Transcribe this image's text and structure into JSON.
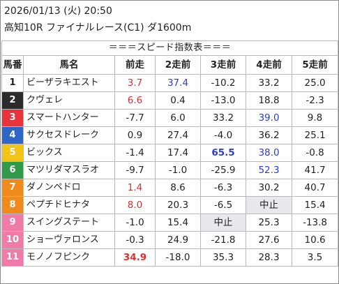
{
  "header": {
    "datetime": "2026/01/13 (火) 20:50",
    "race": "高知10R ファイナルレース(C1) ダ1600m"
  },
  "table": {
    "caption": "＝＝＝スピード指数表＝＝＝",
    "columns": [
      "馬番",
      "馬名",
      "前走",
      "2走前",
      "3走前",
      "4走前",
      "5走前"
    ],
    "rows": [
      {
        "no": "1",
        "name": "ビーザラキエスト",
        "v": [
          "3.7",
          "37.4",
          "-10.2",
          "33.2",
          "25.0"
        ],
        "st": [
          "red",
          "blue",
          "",
          "",
          ""
        ],
        "bg": "#ffffff",
        "fg": "#222222"
      },
      {
        "no": "2",
        "name": "クヴェレ",
        "v": [
          "6.6",
          "0.4",
          "-13.0",
          "18.8",
          "-2.3"
        ],
        "st": [
          "red",
          "",
          "",
          "",
          ""
        ],
        "bg": "#2b2b2b",
        "fg": "#ffffff"
      },
      {
        "no": "3",
        "name": "スマートハンター",
        "v": [
          "-7.7",
          "6.0",
          "33.2",
          "39.0",
          "9.8"
        ],
        "st": [
          "",
          "",
          "",
          "blue",
          ""
        ],
        "bg": "#e8333a",
        "fg": "#ffffff"
      },
      {
        "no": "4",
        "name": "サクセスドレーク",
        "v": [
          "0.9",
          "27.4",
          "-4.0",
          "36.2",
          "25.1"
        ],
        "st": [
          "",
          "",
          "",
          "",
          ""
        ],
        "bg": "#2e66c8",
        "fg": "#ffffff"
      },
      {
        "no": "5",
        "name": "ビックス",
        "v": [
          "-1.4",
          "17.4",
          "65.5",
          "38.0",
          "-0.8"
        ],
        "st": [
          "",
          "",
          "bluebold",
          "blue",
          ""
        ],
        "bg": "#f2c418",
        "fg": "#ffffff"
      },
      {
        "no": "6",
        "name": "マツリダマスラオ",
        "v": [
          "-9.7",
          "-1.0",
          "-25.9",
          "52.3",
          "41.7"
        ],
        "st": [
          "",
          "",
          "",
          "blue",
          ""
        ],
        "bg": "#2f9a48",
        "fg": "#ffffff"
      },
      {
        "no": "7",
        "name": "ダノンペドロ",
        "v": [
          "1.4",
          "8.6",
          "-6.3",
          "30.2",
          "40.7"
        ],
        "st": [
          "red",
          "",
          "",
          "",
          ""
        ],
        "bg": "#f08a1c",
        "fg": "#ffffff"
      },
      {
        "no": "8",
        "name": "ペプチドヒナタ",
        "v": [
          "8.0",
          "20.3",
          "-6.5",
          "中止",
          "15.4"
        ],
        "st": [
          "red",
          "",
          "",
          "na",
          ""
        ],
        "bg": "#f08a1c",
        "fg": "#ffffff"
      },
      {
        "no": "9",
        "name": "スイングステート",
        "v": [
          "-1.0",
          "15.4",
          "中止",
          "25.3",
          "-13.8"
        ],
        "st": [
          "",
          "",
          "na",
          "",
          ""
        ],
        "bg": "#f07ba8",
        "fg": "#ffffff"
      },
      {
        "no": "10",
        "name": "ショーヴァロンス",
        "v": [
          "-0.3",
          "24.9",
          "-21.8",
          "27.6",
          "10.6"
        ],
        "st": [
          "",
          "",
          "",
          "",
          ""
        ],
        "bg": "#f07ba8",
        "fg": "#ffffff"
      },
      {
        "no": "11",
        "name": "モノノフピンク",
        "v": [
          "34.9",
          "-18.0",
          "35.3",
          "28.3",
          "3.5"
        ],
        "st": [
          "redbold",
          "",
          "",
          "",
          ""
        ],
        "bg": "#f07ba8",
        "fg": "#ffffff"
      }
    ]
  }
}
